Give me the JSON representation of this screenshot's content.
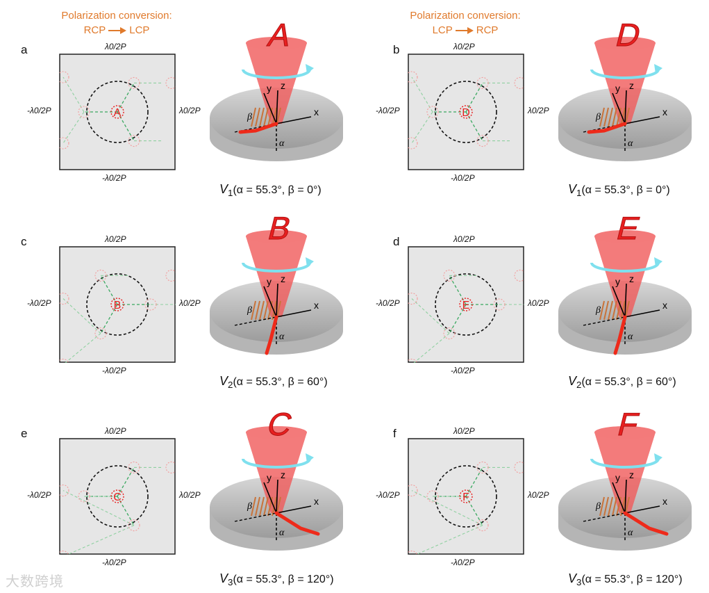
{
  "headers": [
    {
      "title": "Polarization conversion:",
      "from": "RCP",
      "to": "LCP"
    },
    {
      "title": "Polarization conversion:",
      "from": "LCP",
      "to": "RCP"
    }
  ],
  "axis_labels": {
    "top": "λ0/2P",
    "bottom": "-λ0/2P",
    "left": "-λ0/2P",
    "right": "λ0/2P"
  },
  "panels": [
    {
      "letter": "a",
      "center_letter": "A",
      "cone_letter": "A",
      "caption_v": "V",
      "caption_sub": "1",
      "caption_rest": "(α = 55.3°, β = 0°)"
    },
    {
      "letter": "b",
      "center_letter": "D",
      "cone_letter": "D",
      "caption_v": "V",
      "caption_sub": "1",
      "caption_rest": "(α = 55.3°, β = 0°)"
    },
    {
      "letter": "c",
      "center_letter": "B",
      "cone_letter": "B",
      "caption_v": "V",
      "caption_sub": "2",
      "caption_rest": "(α = 55.3°, β = 60°)"
    },
    {
      "letter": "d",
      "center_letter": "E",
      "cone_letter": "E",
      "caption_v": "V",
      "caption_sub": "2",
      "caption_rest": "(α = 55.3°, β = 60°)"
    },
    {
      "letter": "e",
      "center_letter": "C",
      "cone_letter": "C",
      "caption_v": "V",
      "caption_sub": "3",
      "caption_rest": "(α = 55.3°, β = 120°)"
    },
    {
      "letter": "f",
      "center_letter": "F",
      "cone_letter": "F",
      "caption_v": "V",
      "caption_sub": "3",
      "caption_rest": "(α = 55.3°, β = 120°)"
    }
  ],
  "cone_axes": {
    "x": "x",
    "y": "y",
    "z": "z",
    "alpha": "α",
    "beta": "β"
  },
  "watermark": "大数跨境",
  "colors": {
    "header": "#e07a2c",
    "beam": "#f05a5a",
    "letter": "#e82020",
    "swirl": "#7fe0ee",
    "dash_green": "#3aa860"
  }
}
